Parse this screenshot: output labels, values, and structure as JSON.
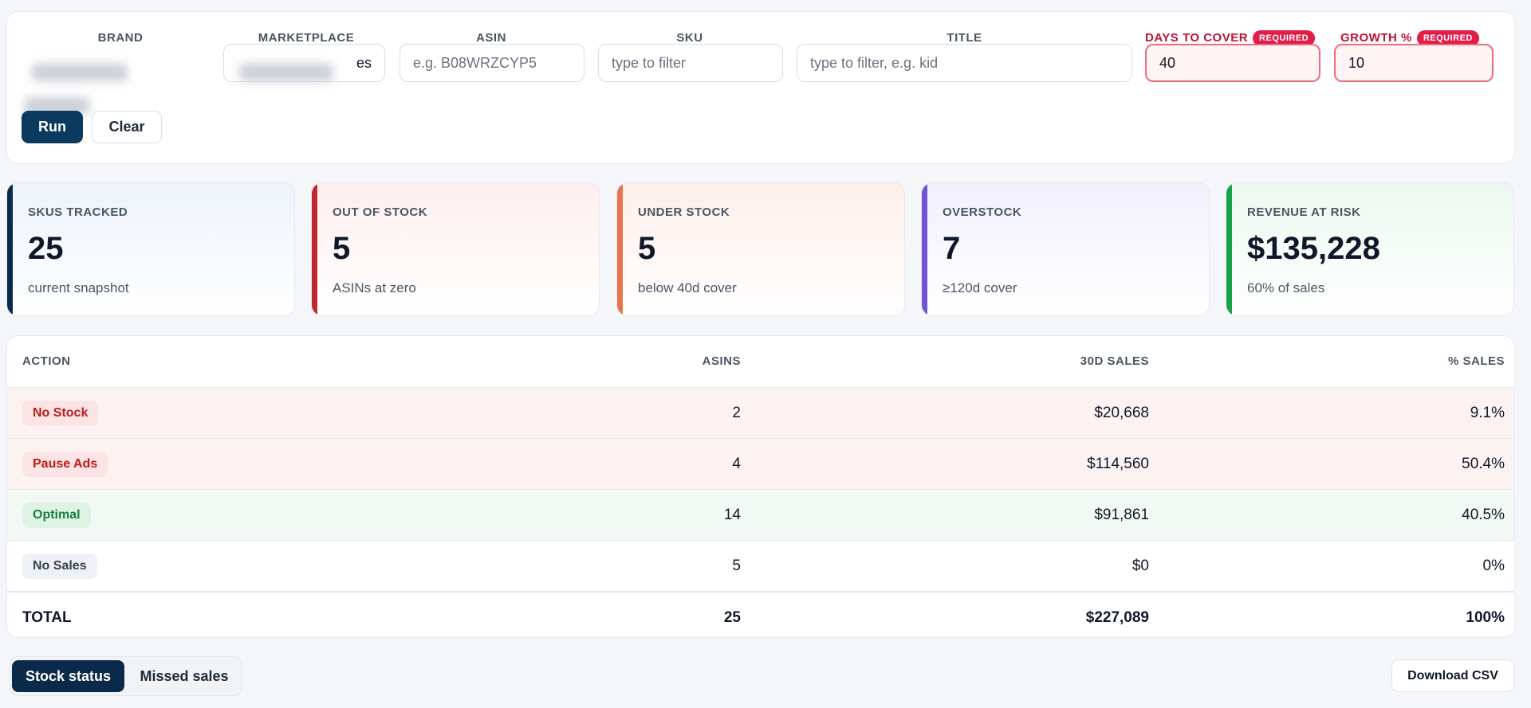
{
  "filters": {
    "brand": {
      "label": "BRAND",
      "value": ""
    },
    "marketplace": {
      "label": "MARKETPLACE",
      "value": "es"
    },
    "asin": {
      "label": "ASIN",
      "placeholder": "e.g. B08WRZCYP5"
    },
    "sku": {
      "label": "SKU",
      "placeholder": "type to filter"
    },
    "title": {
      "label": "TITLE",
      "placeholder": "type to filter, e.g. kid"
    },
    "days_to_cover": {
      "label": "DAYS TO COVER",
      "badge": "REQUIRED",
      "value": "40"
    },
    "growth": {
      "label": "GROWTH %",
      "badge": "REQUIRED",
      "value": "10"
    },
    "run_label": "Run",
    "clear_label": "Clear"
  },
  "kpis": [
    {
      "label": "SKUS TRACKED",
      "value": "25",
      "sub": "current snapshot",
      "accent": "#0b2a4a",
      "tint": "#eef3fb"
    },
    {
      "label": "OUT OF STOCK",
      "value": "5",
      "sub": "ASINs at zero",
      "accent": "#c0262d",
      "tint": "#fdeeee"
    },
    {
      "label": "UNDER STOCK",
      "value": "5",
      "sub": "below 40d cover",
      "accent": "#e8734f",
      "tint": "#fdefea"
    },
    {
      "label": "OVERSTOCK",
      "value": "7",
      "sub": "≥120d cover",
      "accent": "#6d55d6",
      "tint": "#f2f0fc"
    },
    {
      "label": "REVENUE AT RISK",
      "value": "$135,228",
      "sub": "60% of sales",
      "accent": "#16a34a",
      "tint": "#ecf8f0"
    }
  ],
  "table": {
    "headers": [
      "ACTION",
      "ASINS",
      "30D SALES",
      "% SALES"
    ],
    "rows": [
      {
        "action": "No Stock",
        "asins": "2",
        "sales": "$20,668",
        "pct": "9.1%",
        "row_bg": "#fdf2f2",
        "pill_bg": "#fde4e4",
        "pill_fg": "#b91c1c"
      },
      {
        "action": "Pause Ads",
        "asins": "4",
        "sales": "$114,560",
        "pct": "50.4%",
        "row_bg": "#fdf2f2",
        "pill_bg": "#fde4e4",
        "pill_fg": "#b91c1c"
      },
      {
        "action": "Optimal",
        "asins": "14",
        "sales": "$91,861",
        "pct": "40.5%",
        "row_bg": "#f2f9f4",
        "pill_bg": "#dff3e5",
        "pill_fg": "#15803d"
      },
      {
        "action": "No Sales",
        "asins": "5",
        "sales": "$0",
        "pct": "0%",
        "row_bg": "#ffffff",
        "pill_bg": "#eef1f5",
        "pill_fg": "#374151"
      }
    ],
    "total": {
      "label": "TOTAL",
      "asins": "25",
      "sales": "$227,089",
      "pct": "100%"
    }
  },
  "tabs": {
    "active": "Stock status",
    "other": "Missed sales"
  },
  "download_label": "Download CSV"
}
